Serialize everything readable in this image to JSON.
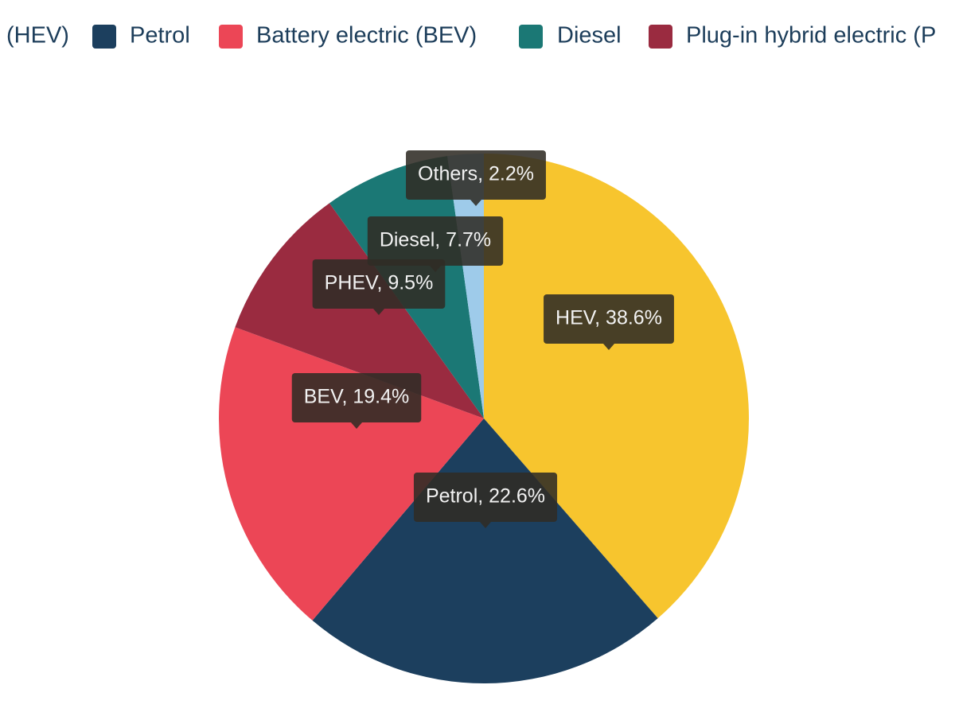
{
  "chart_data": {
    "type": "pie",
    "legend": [
      {
        "name": "(HEV)",
        "color": "#f7c52e"
      },
      {
        "name": "Petrol",
        "color": "#1c3f5e"
      },
      {
        "name": "Battery electric (BEV)",
        "color": "#ec4656"
      },
      {
        "name": "Diesel",
        "color": "#1b7875"
      },
      {
        "name": "Plug-in hybrid electric (P",
        "color": "#9a2b40"
      }
    ],
    "values": [
      38.6,
      22.6,
      19.4,
      9.5,
      7.7,
      2.2
    ],
    "value_labels": [
      "HEV, 38.6%",
      "Petrol, 22.6%",
      "BEV, 19.4%",
      "PHEV, 9.5%",
      "Diesel, 7.7%",
      "Others, 2.2%"
    ],
    "colors": [
      "#f7c52e",
      "#1c3f5e",
      "#ec4656",
      "#9a2b40",
      "#1b7875",
      "#9ecbea"
    ]
  }
}
